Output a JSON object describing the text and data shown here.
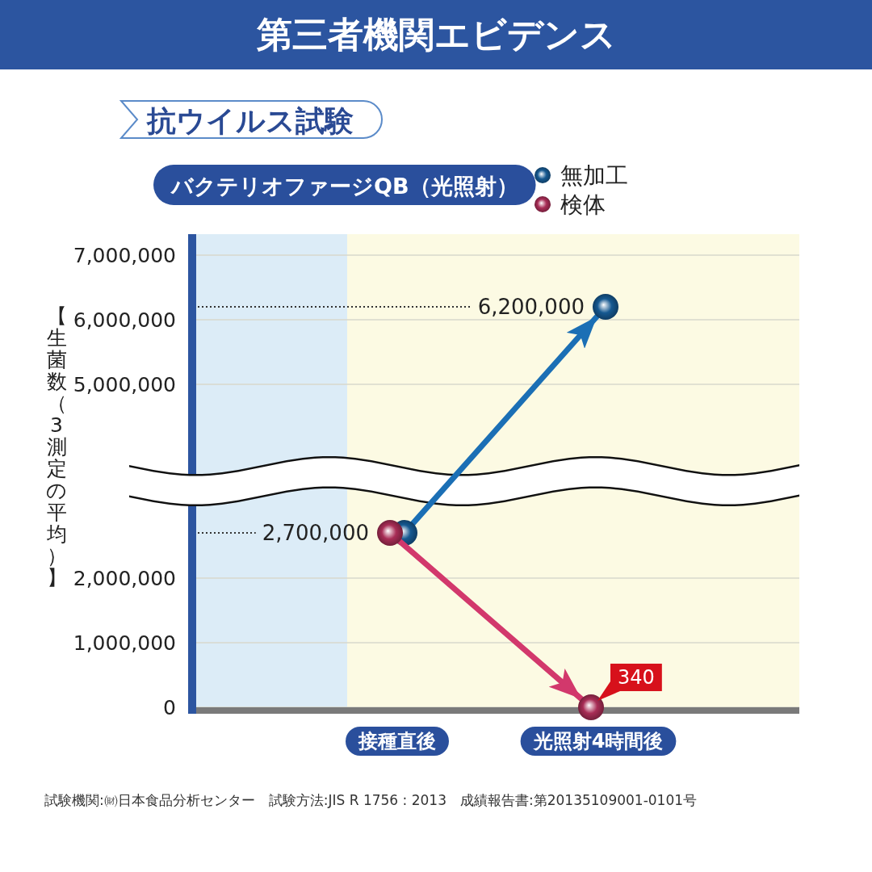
{
  "chart_data": {
    "type": "line",
    "title": "第三者機関エビデンス",
    "subtitle": "抗ウイルス試験",
    "ylabel": "【生菌数（3測定の平均）】",
    "annotations": [
      "バクテリオファージQB（光照射）",
      "試験機関:㈶日本食品分析センター　試験方法:JIS R 1756 : 2013　成績報告書:第20135109001-0101号"
    ],
    "categories": [
      "接種直後",
      "光照射4時間後"
    ],
    "series": [
      {
        "name": "無加工",
        "color": "#1b6fb5",
        "values": [
          2700000,
          6200000
        ],
        "value_labels": [
          null,
          "6,200,000"
        ]
      },
      {
        "name": "検体",
        "color": "#d2386c",
        "values": [
          2700000,
          340
        ],
        "value_labels": [
          "2,700,000",
          "340"
        ]
      }
    ],
    "ylim": [
      0,
      7000000
    ],
    "yticks": [
      0,
      {
        "value": 1000000,
        "label": "1,000,000"
      },
      {
        "value": 2000000,
        "label": "2,000,000"
      },
      {
        "value": 5000000,
        "label": "5,000,000"
      },
      {
        "value": 6000000,
        "label": "6,000,000"
      },
      {
        "value": 7000000,
        "label": "7,000,000"
      }
    ],
    "grid": "y",
    "legend": "top right",
    "marker": "circle"
  }
}
